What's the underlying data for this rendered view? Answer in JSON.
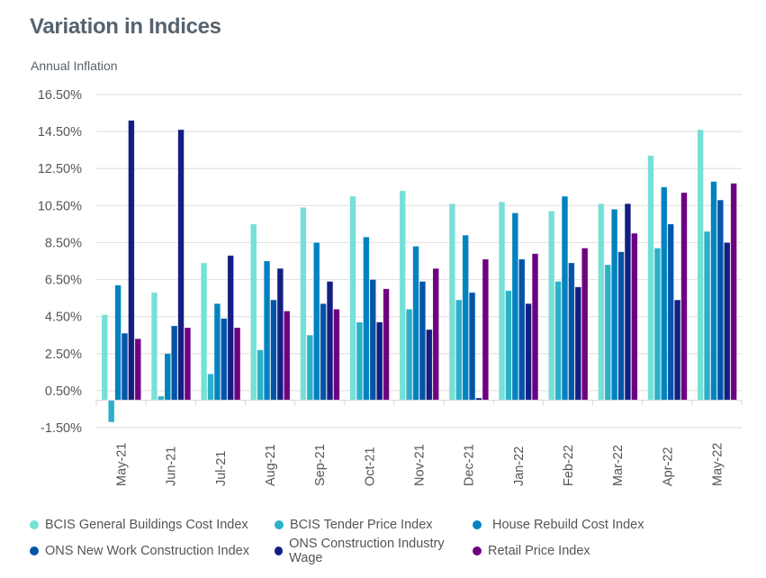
{
  "chart_data": {
    "type": "bar",
    "title": "Variation in Indices",
    "subtitle": "Annual Inflation",
    "xlabel": "",
    "ylabel": "Annual Inflation",
    "ylim": [
      -1.5,
      16.5
    ],
    "yticks": [
      -1.5,
      0.5,
      2.5,
      4.5,
      6.5,
      8.5,
      10.5,
      12.5,
      14.5,
      16.5
    ],
    "ytick_labels": [
      "-1.50%",
      "0.50%",
      "2.50%",
      "4.50%",
      "6.50%",
      "8.50%",
      "10.50%",
      "12.50%",
      "14.50%",
      "16.50%"
    ],
    "grid": true,
    "legend_position": "bottom",
    "categories": [
      "May-21",
      "Jun-21",
      "Jul-21",
      "Aug-21",
      "Sep-21",
      "Oct-21",
      "Nov-21",
      "Dec-21",
      "Jan-22",
      "Feb-22",
      "Mar-22",
      "Apr-22",
      "May-22"
    ],
    "series": [
      {
        "name": "BCIS General Buildings Cost Index",
        "color": "#76E0D8",
        "values": [
          4.6,
          5.8,
          7.4,
          9.5,
          10.4,
          11.0,
          11.3,
          10.6,
          10.7,
          10.2,
          10.6,
          13.2,
          14.6
        ]
      },
      {
        "name": "BCIS Tender Price Index",
        "color": "#2BB0C8",
        "values": [
          -1.2,
          0.2,
          1.4,
          2.7,
          3.5,
          4.2,
          4.9,
          5.4,
          5.9,
          6.4,
          7.3,
          8.2,
          9.1
        ]
      },
      {
        "name": "House Rebuild Cost Index",
        "color": "#0283C0",
        "values": [
          6.2,
          2.5,
          5.2,
          7.5,
          8.5,
          8.8,
          8.3,
          8.9,
          10.1,
          11.0,
          10.3,
          11.5,
          11.8
        ]
      },
      {
        "name": "ONS New Work Construction Index",
        "color": "#0455A8",
        "values": [
          3.6,
          4.0,
          4.4,
          5.4,
          5.2,
          6.5,
          6.4,
          5.8,
          7.6,
          7.4,
          8.0,
          9.5,
          10.8
        ]
      },
      {
        "name": "ONS Construction Industry Wage",
        "color": "#141E82",
        "values": [
          15.1,
          14.6,
          7.8,
          7.1,
          6.4,
          4.2,
          3.8,
          0.1,
          5.2,
          6.1,
          10.6,
          5.4,
          8.5
        ]
      },
      {
        "name": "Retail Price Index",
        "color": "#6E0082",
        "values": [
          3.3,
          3.9,
          3.9,
          4.8,
          4.9,
          6.0,
          7.1,
          7.6,
          7.9,
          8.2,
          9.0,
          11.2,
          11.7
        ]
      }
    ]
  }
}
